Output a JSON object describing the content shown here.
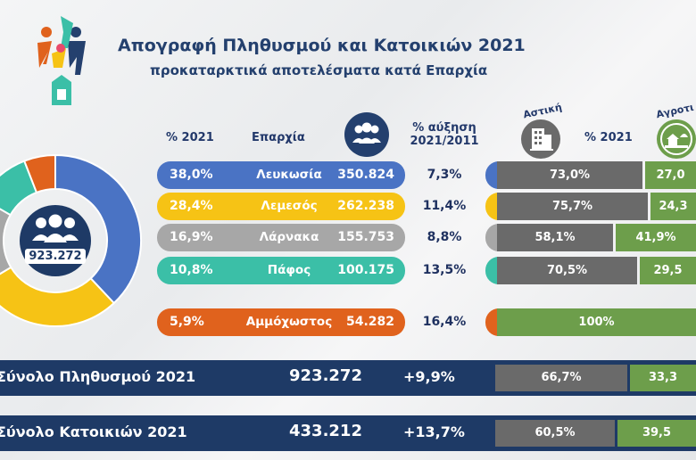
{
  "header": {
    "title": "Απογραφή Πληθυσμού και Κατοικιών 2021",
    "subtitle": "προκαταρκτικά αποτελέσματα κατά Επαρχία"
  },
  "columns": {
    "pct": "% 2021",
    "district": "Επαρχία",
    "growth_l1": "% αύξηση",
    "growth_l2": "2021/2011",
    "urban": "Αστική",
    "urban_pct": "% 2021",
    "rural": "Αγροτι"
  },
  "donut": {
    "center_value": "923.272"
  },
  "colors": {
    "blue": "#4a73c4",
    "yellow": "#f6c315",
    "grey": "#a7a7a7",
    "teal": "#3bbfa7",
    "orange": "#e0621d",
    "urban": "#6a6a6a",
    "rural": "#6d9e4b",
    "navy": "#1e3a66"
  },
  "rows": [
    {
      "pct": "38,0%",
      "name": "Λευκωσία",
      "population": "350.824",
      "growth": "7,3%",
      "urban": "73,0%",
      "rural": "27,0"
    },
    {
      "pct": "28,4%",
      "name": "Λεμεσός",
      "population": "262.238",
      "growth": "11,4%",
      "urban": "75,7%",
      "rural": "24,3"
    },
    {
      "pct": "16,9%",
      "name": "Λάρνακα",
      "population": "155.753",
      "growth": "8,8%",
      "urban": "58,1%",
      "rural": "41,9%"
    },
    {
      "pct": "10,8%",
      "name": "Πάφος",
      "population": "100.175",
      "growth": "13,5%",
      "urban": "70,5%",
      "rural": "29,5"
    },
    {
      "pct": "5,9%",
      "name": "Αμμόχωστος",
      "population": "54.282",
      "growth": "16,4%",
      "urban": "",
      "rural": "100%"
    }
  ],
  "totals": [
    {
      "label": "Σύνολο Πληθυσμού 2021",
      "value": "923.272",
      "growth": "+9,9%",
      "urban": "66,7%",
      "rural": "33,3"
    },
    {
      "label": "Σύνολο Κατοικιών 2021",
      "value": "433.212",
      "growth": "+13,7%",
      "urban": "60,5%",
      "rural": "39,5"
    }
  ],
  "chart_data": {
    "type": "pie",
    "categories": [
      "Λευκωσία",
      "Λεμεσός",
      "Λάρνακα",
      "Πάφος",
      "Αμμόχωστος"
    ],
    "values": [
      38.0,
      28.4,
      16.9,
      10.8,
      5.9
    ],
    "series": [
      {
        "name": "Αστική",
        "values": [
          73.0,
          75.7,
          58.1,
          70.5,
          0
        ]
      },
      {
        "name": "Αγροτι",
        "values": [
          27.0,
          24.3,
          41.9,
          29.5,
          100
        ]
      }
    ]
  }
}
